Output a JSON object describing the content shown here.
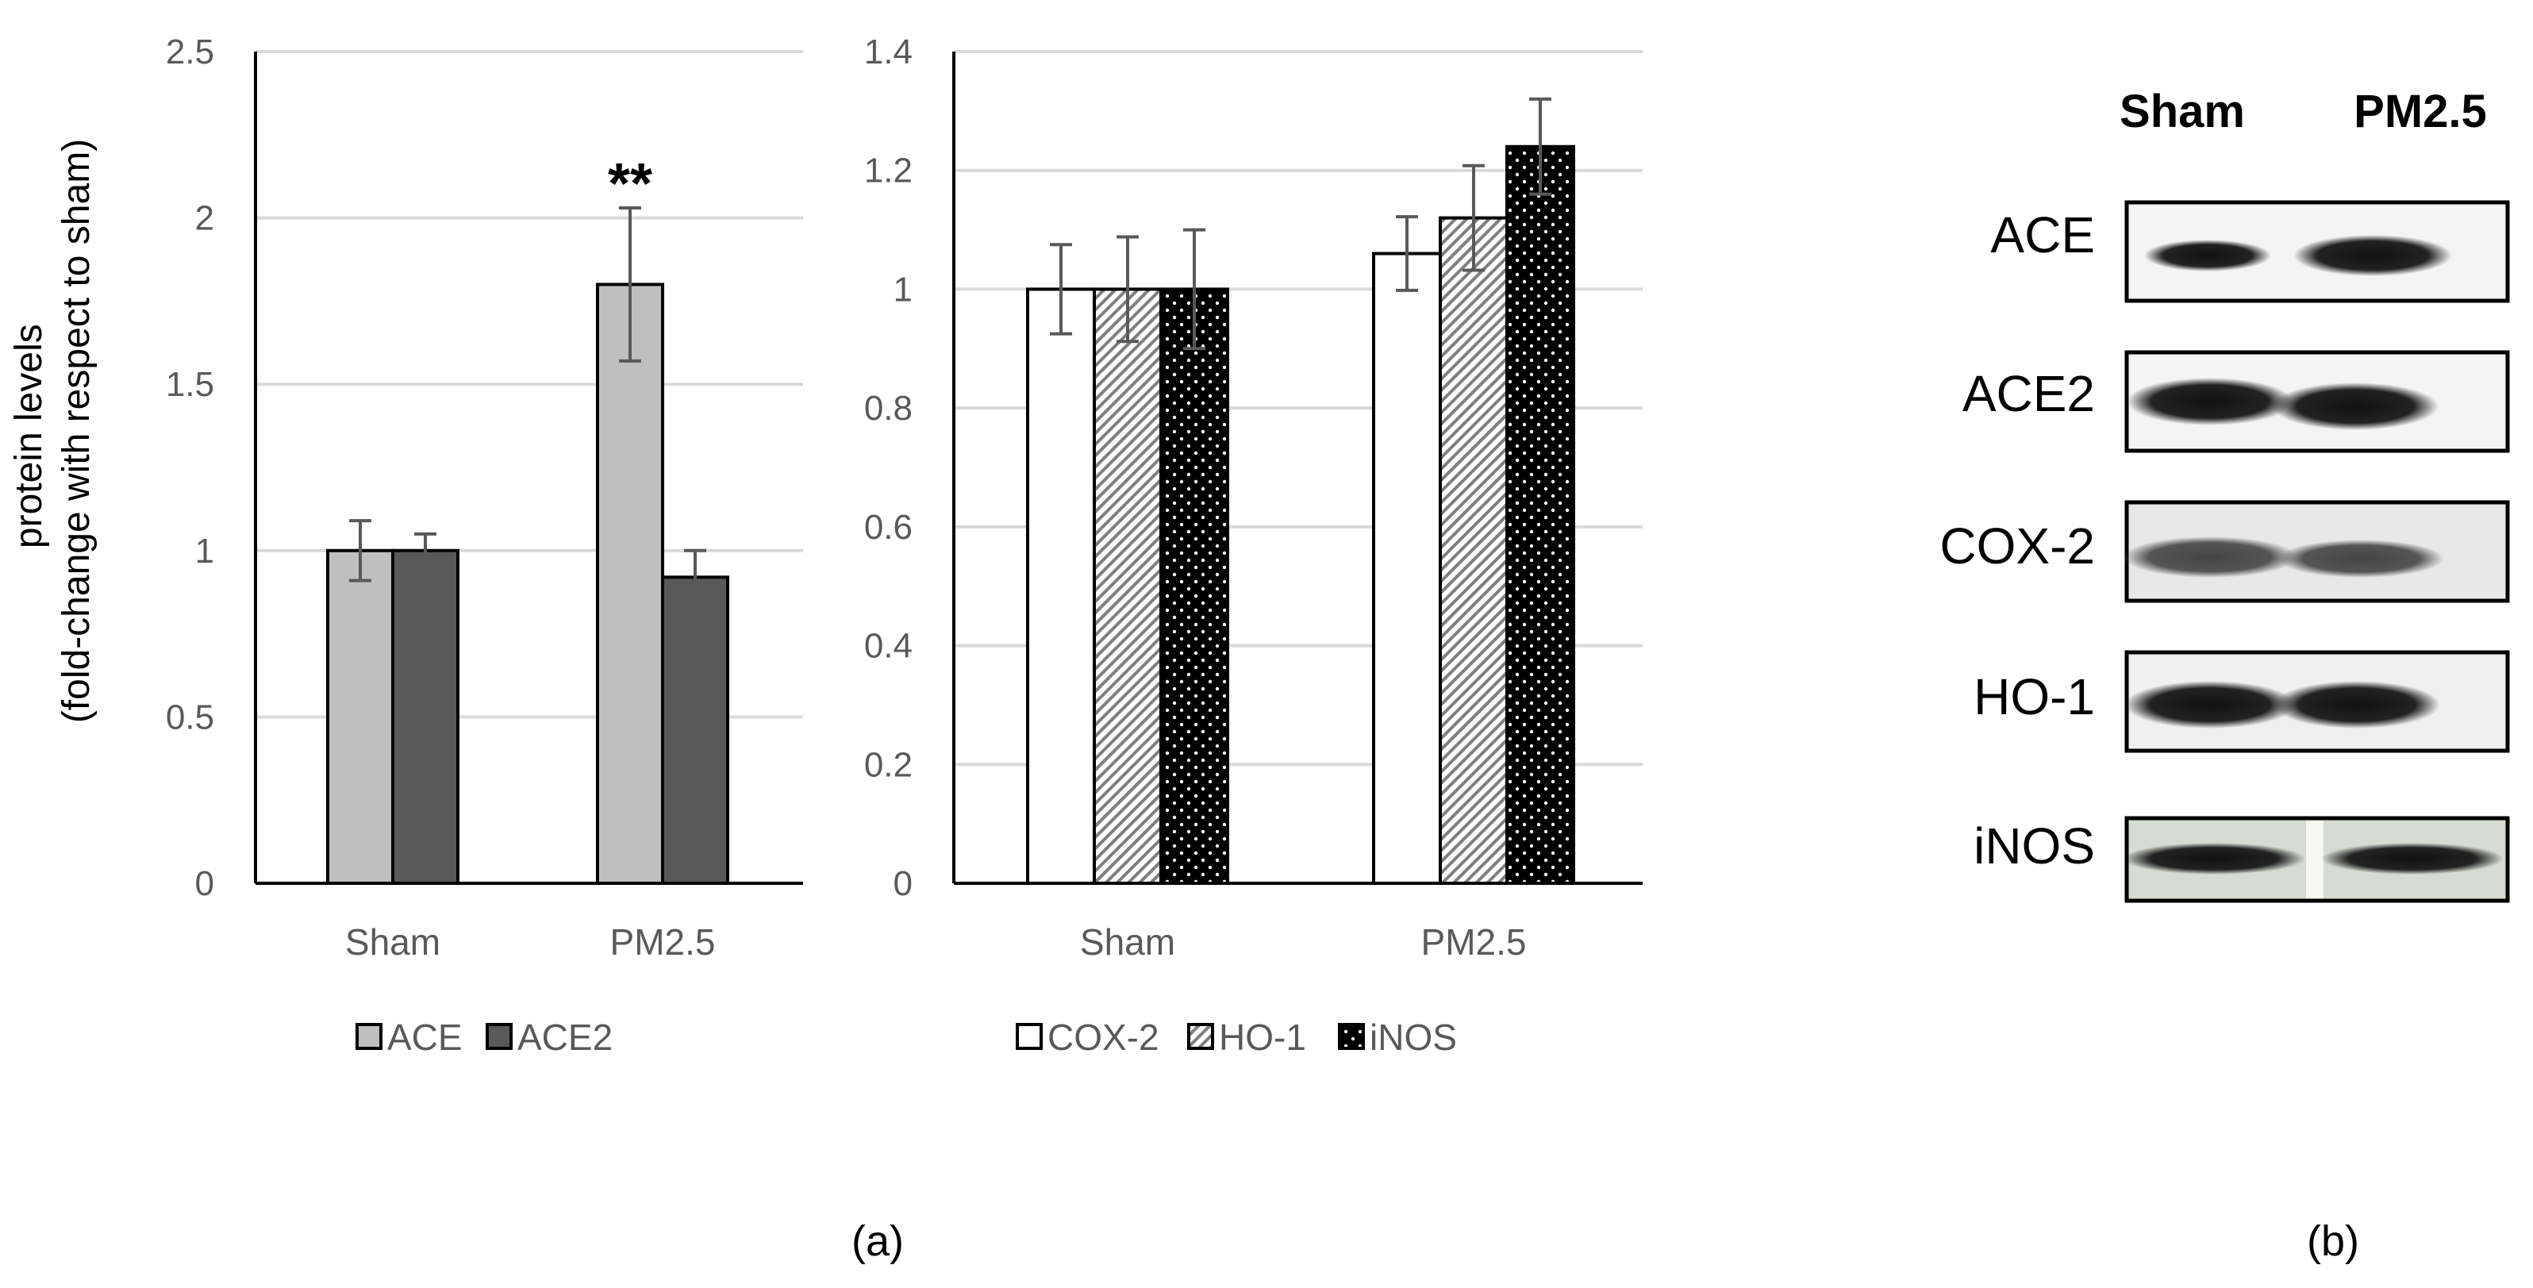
{
  "chart_data": [
    {
      "id": "ace",
      "type": "bar",
      "categories": [
        "Sham",
        "PM2.5"
      ],
      "series": [
        {
          "name": "ACE",
          "values": [
            1.0,
            1.8
          ],
          "errors": [
            0.09,
            0.23
          ],
          "color": "#bfbfbf",
          "pattern": "solid"
        },
        {
          "name": "ACE2",
          "values": [
            1.0,
            0.92
          ],
          "errors": [
            0.05,
            0.08
          ],
          "color": "#595959",
          "pattern": "solid"
        }
      ],
      "annotations": [
        {
          "series": 0,
          "category": 1,
          "text": "**"
        }
      ],
      "ylabel": [
        "protein levels",
        "(fold-change with respect to sham)"
      ],
      "ylim": [
        0,
        2.5
      ],
      "yticks": [
        0,
        0.5,
        1,
        1.5,
        2,
        2.5
      ],
      "ytick_labels": [
        "0",
        "0.5",
        "1",
        "1.5",
        "2",
        "2.5"
      ],
      "grid": true,
      "legend_position": "bottom"
    },
    {
      "id": "inflam",
      "type": "bar",
      "categories": [
        "Sham",
        "PM2.5"
      ],
      "series": [
        {
          "name": "COX-2",
          "values": [
            1.0,
            1.06
          ],
          "errors": [
            0.075,
            0.062
          ],
          "color": "#ffffff",
          "pattern": "solid"
        },
        {
          "name": "HO-1",
          "values": [
            1.0,
            1.12
          ],
          "errors": [
            0.088,
            0.088
          ],
          "color": "#ffffff",
          "pattern": "hatch"
        },
        {
          "name": "iNOS",
          "values": [
            1.0,
            1.24
          ],
          "errors": [
            0.1,
            0.08
          ],
          "color": "#000000",
          "pattern": "dots"
        }
      ],
      "ylim": [
        0,
        1.4
      ],
      "yticks": [
        0,
        0.2,
        0.4,
        0.6,
        0.8,
        1,
        1.2,
        1.4
      ],
      "ytick_labels": [
        "0",
        "0.2",
        "0.4",
        "0.6",
        "0.8",
        "1",
        "1.2",
        "1.4"
      ],
      "grid": true,
      "legend_position": "bottom"
    }
  ],
  "figure": {
    "panel_a_label": "(a)",
    "panel_b_label": "(b)"
  },
  "blot": {
    "columns": [
      "Sham",
      "PM2.5"
    ],
    "rows": [
      "ACE",
      "ACE2",
      "COX-2",
      "HO-1",
      "iNOS"
    ]
  }
}
